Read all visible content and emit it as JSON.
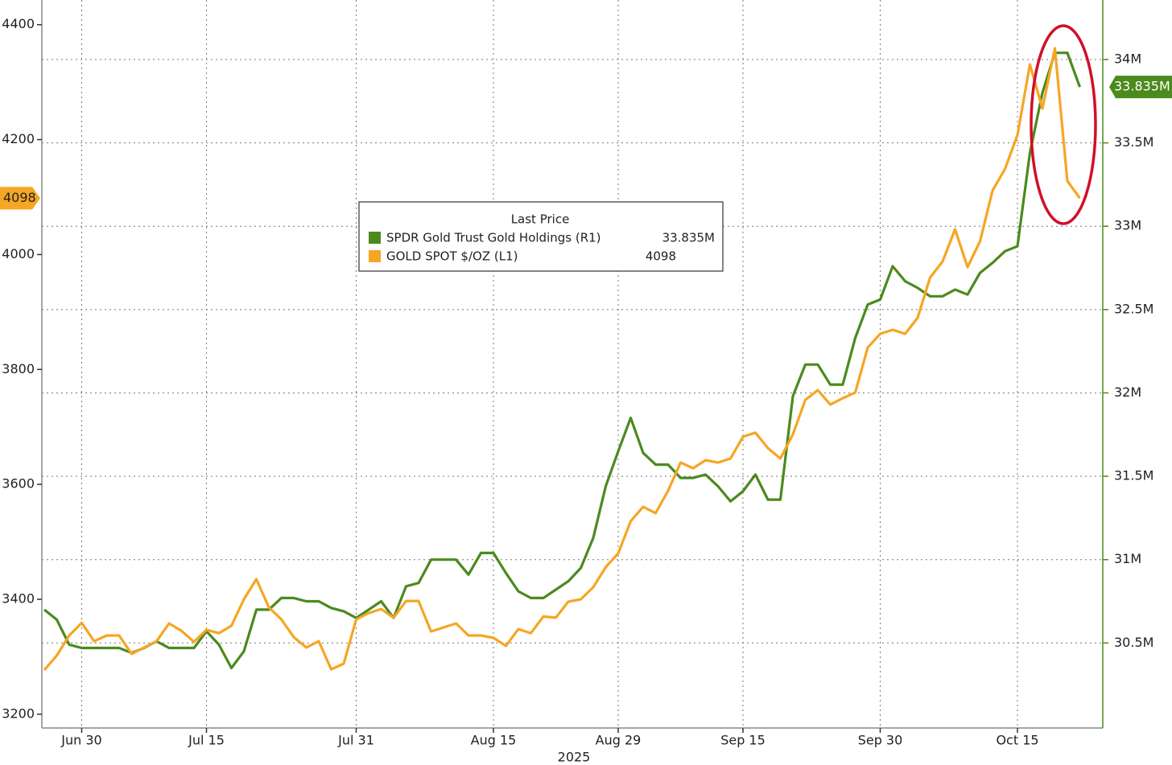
{
  "chart_data": {
    "type": "line",
    "legend_title": "Last Price",
    "legend_position": "top-center",
    "xlabel": "2025",
    "grid": true,
    "categories": [
      null,
      null,
      null,
      "Jun 30",
      null,
      null,
      null,
      null,
      null,
      null,
      null,
      null,
      null,
      "Jul 15",
      null,
      null,
      null,
      null,
      null,
      null,
      null,
      null,
      null,
      null,
      null,
      "Jul 31",
      null,
      null,
      null,
      null,
      null,
      null,
      null,
      null,
      null,
      null,
      "Aug 15",
      null,
      null,
      null,
      null,
      null,
      null,
      null,
      null,
      null,
      "Aug 29",
      null,
      null,
      null,
      null,
      null,
      null,
      null,
      null,
      null,
      "Sep 15",
      null,
      null,
      null,
      null,
      null,
      null,
      null,
      null,
      null,
      null,
      "Sep 30",
      null,
      null,
      null,
      null,
      null,
      null,
      null,
      null,
      null,
      null,
      "Oct 15",
      null,
      null,
      null,
      null,
      null
    ],
    "ylim": [
      3176,
      4443
    ],
    "yticks": [
      3200,
      3400,
      3600,
      3800,
      4000,
      4200,
      4400
    ],
    "y2lim": [
      29990000,
      34357000
    ],
    "y2ticks": [
      {
        "value": 30500000,
        "label": "30.5M"
      },
      {
        "value": 31000000,
        "label": "31M"
      },
      {
        "value": 31500000,
        "label": "31.5M"
      },
      {
        "value": 32000000,
        "label": "32M"
      },
      {
        "value": 32500000,
        "label": "32.5M"
      },
      {
        "value": 33000000,
        "label": "33M"
      },
      {
        "value": 33500000,
        "label": "33.5M"
      },
      {
        "value": 34000000,
        "label": "34M"
      }
    ],
    "series": [
      {
        "name": "SPDR Gold Trust Gold Holdings (R1)",
        "color": "#4b8a1d",
        "axis": "y2",
        "last_label": "33.835M",
        "values": [
          30700000,
          30640000,
          30490000,
          30470000,
          30470000,
          30470000,
          30470000,
          30440000,
          30470000,
          30510000,
          30470000,
          30470000,
          30470000,
          30570000,
          30490000,
          30350000,
          30450000,
          30700000,
          30700000,
          30770000,
          30770000,
          30750000,
          30750000,
          30710000,
          30690000,
          30650000,
          30700000,
          30750000,
          30650000,
          30840000,
          30860000,
          31000000,
          31000000,
          31000000,
          30910000,
          31040000,
          31040000,
          30920000,
          30810000,
          30770000,
          30770000,
          30820000,
          30870000,
          30950000,
          31130000,
          31440000,
          31650000,
          31850000,
          31640000,
          31570000,
          31570000,
          31490000,
          31490000,
          31510000,
          31440000,
          31350000,
          31410000,
          31510000,
          31360000,
          31360000,
          31980000,
          32170000,
          32170000,
          32050000,
          32050000,
          32330000,
          32530000,
          32560000,
          32760000,
          32670000,
          32630000,
          32580000,
          32580000,
          32620000,
          32590000,
          32720000,
          32780000,
          32850000,
          32880000,
          33440000,
          33800000,
          34040000,
          34040000,
          33835000
        ]
      },
      {
        "name": "GOLD SPOT $/OZ (L1)",
        "color": "#f5a623",
        "axis": "y",
        "values": [
          3277,
          3302,
          3337,
          3359,
          3327,
          3337,
          3337,
          3305,
          3316,
          3327,
          3358,
          3345,
          3326,
          3347,
          3341,
          3354,
          3400,
          3435,
          3386,
          3365,
          3334,
          3316,
          3327,
          3278,
          3288,
          3365,
          3376,
          3383,
          3368,
          3397,
          3397,
          3344,
          3351,
          3358,
          3337,
          3337,
          3333,
          3319,
          3348,
          3341,
          3370,
          3368,
          3396,
          3400,
          3421,
          3456,
          3480,
          3536,
          3561,
          3550,
          3589,
          3638,
          3628,
          3642,
          3638,
          3645,
          3683,
          3690,
          3663,
          3645,
          3687,
          3747,
          3764,
          3739,
          3750,
          3760,
          3838,
          3862,
          3869,
          3862,
          3890,
          3960,
          3988,
          4044,
          3978,
          4023,
          4111,
          4149,
          4208,
          4331,
          4254,
          4359,
          4128,
          4098
        ]
      }
    ]
  }
}
